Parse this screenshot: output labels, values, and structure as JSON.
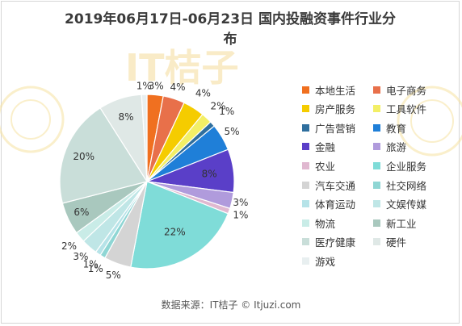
{
  "chart_data": {
    "type": "pie",
    "title": "2019年06月17日-06月23日 国内投融资事件行业分布",
    "title_lines": [
      "2019年06月17日-06月23日 国内投融资事件行业分",
      "布"
    ],
    "source": "数据来源：IT桔子 © Itjuzi.com",
    "legend_placement": "right",
    "slices": [
      {
        "name": "本地生活",
        "value": 3,
        "label": "3%",
        "color": "#f07020"
      },
      {
        "name": "电子商务",
        "value": 4,
        "label": "4%",
        "color": "#e8704a"
      },
      {
        "name": "房产服务",
        "value": 4,
        "label": "4%",
        "color": "#f5cc00"
      },
      {
        "name": "工具软件",
        "value": 2,
        "label": "2%",
        "color": "#f3ef66"
      },
      {
        "name": "广告营销",
        "value": 1,
        "label": "1%",
        "color": "#2f6f9e"
      },
      {
        "name": "教育",
        "value": 5,
        "label": "5%",
        "color": "#1f7fd8"
      },
      {
        "name": "金融",
        "value": 8,
        "label": "8%",
        "color": "#5a3fc8"
      },
      {
        "name": "旅游",
        "value": 3,
        "label": "3%",
        "color": "#b09bdc"
      },
      {
        "name": "农业",
        "value": 1,
        "label": "1%",
        "color": "#e0b8d0"
      },
      {
        "name": "企业服务",
        "value": 22,
        "label": "22%",
        "color": "#7fdcd8"
      },
      {
        "name": "汽车交通",
        "value": 5,
        "label": "5%",
        "color": "#d4d4d4"
      },
      {
        "name": "社交网络",
        "value": 1,
        "label": "1%",
        "color": "#8fd6d4"
      },
      {
        "name": "体育运动",
        "value": 1,
        "label": "1%",
        "color": "#b6e3e8"
      },
      {
        "name": "文娱传媒",
        "value": 3,
        "label": "3%",
        "color": "#bfe6e6"
      },
      {
        "name": "物流",
        "value": 2,
        "label": "2%",
        "color": "#c9ece7"
      },
      {
        "name": "新工业",
        "value": 6,
        "label": "6%",
        "color": "#a9c8be"
      },
      {
        "name": "医疗健康",
        "value": 20,
        "label": "20%",
        "color": "#c9ded9"
      },
      {
        "name": "硬件",
        "value": 8,
        "label": "8%",
        "color": "#dfe8e6"
      },
      {
        "name": "游戏",
        "value": 1,
        "label": "1%",
        "color": "#e8eff0"
      }
    ]
  },
  "watermark": {
    "text": "IT桔子",
    "color": "#f6e7b4"
  }
}
